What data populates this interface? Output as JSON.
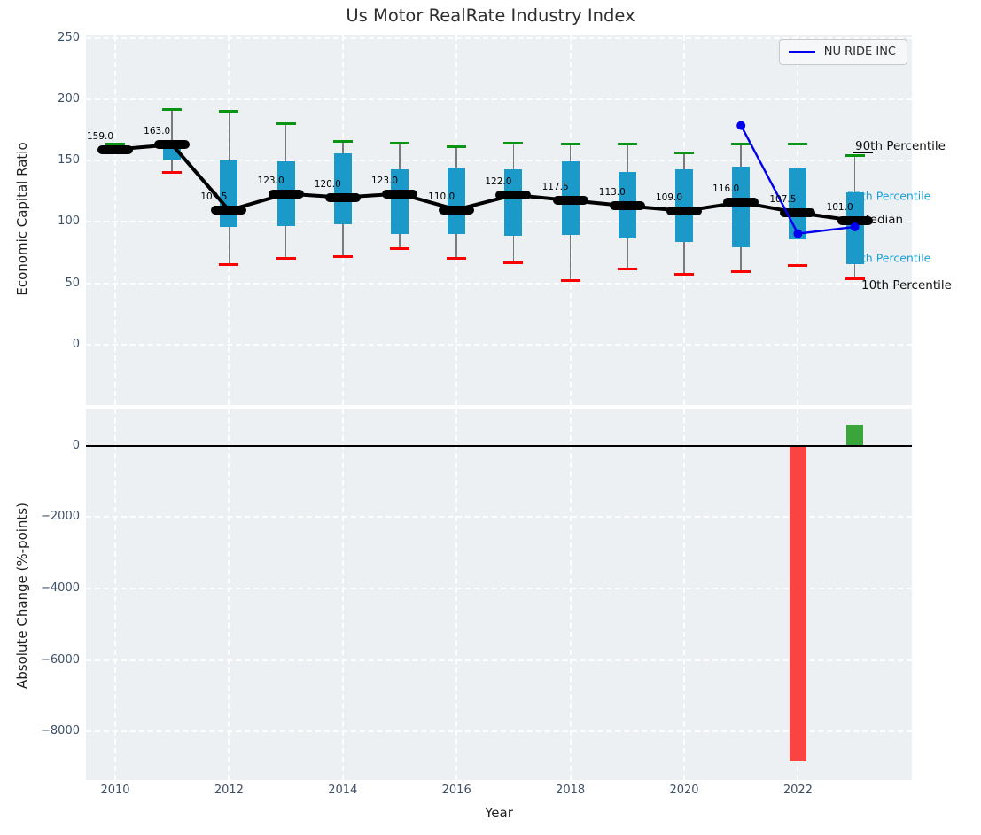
{
  "figure_title": "Us Motor RealRate Industry Index",
  "chart_data": [
    {
      "type": "box-whisker-with-median-line",
      "title": "Us Motor RealRate Industry Index",
      "ylabel": "Economic Capital Ratio",
      "ylim": [
        -49,
        252
      ],
      "ytick_values": [
        0,
        50,
        100,
        150,
        200,
        250
      ],
      "ytick_labels": [
        "0",
        "50",
        "100",
        "150",
        "200",
        "250"
      ],
      "xtick_values": [
        2010,
        2012,
        2014,
        2016,
        2018,
        2020,
        2022
      ],
      "xtick_labels": [
        "2010",
        "2012",
        "2014",
        "2016",
        "2018",
        "2020",
        "2022"
      ],
      "grid": "white-dashed",
      "years": [
        2010,
        2011,
        2012,
        2013,
        2014,
        2015,
        2016,
        2017,
        2018,
        2019,
        2020,
        2021,
        2022,
        2023
      ],
      "median": [
        159,
        163,
        109.5,
        123,
        120,
        123,
        110,
        122,
        117.5,
        113,
        109,
        116,
        107.5,
        101
      ],
      "median_labels": [
        "159.0",
        "163.0",
        "109.5",
        "123.0",
        "120.0",
        "123.0",
        "110.0",
        "122.0",
        "117.5",
        "113.0",
        "109.0",
        "116.0",
        "107.5",
        "101.0"
      ],
      "p90": [
        163.5,
        191.5,
        190,
        180,
        165.5,
        164.5,
        161.5,
        164,
        163.5,
        163.5,
        156,
        163.5,
        163.5,
        154
      ],
      "p75": [
        161,
        161,
        150,
        149.5,
        156,
        143,
        144,
        143,
        149.5,
        141,
        143,
        145,
        143.5,
        124
      ],
      "p25": [
        156,
        151,
        96,
        97,
        98,
        90,
        90,
        88.5,
        89.5,
        86.5,
        84,
        79.5,
        86,
        66
      ],
      "p10": [
        156.5,
        140.5,
        65.5,
        70.5,
        72,
        78,
        70,
        67,
        52,
        62,
        57.5,
        59.5,
        64.5,
        54
      ],
      "series": [
        {
          "name": "NU RIDE INC",
          "x": [
            2021,
            2022,
            2023
          ],
          "y": [
            178.5,
            90.5,
            96
          ],
          "color": "#0000ee"
        }
      ],
      "legend": {
        "position": "upper-right",
        "entries": [
          {
            "label": "NU RIDE INC",
            "color": "#0000ee"
          }
        ]
      },
      "annotations": {
        "p90": "90th Percentile",
        "p75": "75th Percentile",
        "median": "Median",
        "p25": "25th Percentile",
        "p10": "10th Percentile"
      },
      "colors": {
        "box": "#1b9aca",
        "cap_high": "#0b9414",
        "cap_low": "#ff0000",
        "median_line": "#000000",
        "whisker": "#7a7a7a",
        "plot_background": "#edf0f2"
      }
    },
    {
      "type": "bar",
      "ylabel": "Absolute Change (%-points)",
      "xlabel": "Year",
      "ylim": [
        -9354,
        1034
      ],
      "ytick_values": [
        0,
        -2000,
        -4000,
        -6000,
        -8000
      ],
      "ytick_labels": [
        "0",
        "−2000",
        "−4000",
        "−6000",
        "−8000"
      ],
      "xtick_values": [
        2010,
        2012,
        2014,
        2016,
        2018,
        2020,
        2022
      ],
      "xtick_labels": [
        "2010",
        "2012",
        "2014",
        "2016",
        "2018",
        "2020",
        "2022"
      ],
      "categories": [
        2022,
        2023
      ],
      "values": [
        -8840,
        588
      ],
      "bar_colors": [
        "#fa4343",
        "#3aa53a"
      ],
      "zero_line": true,
      "grid": "white-dashed"
    }
  ]
}
